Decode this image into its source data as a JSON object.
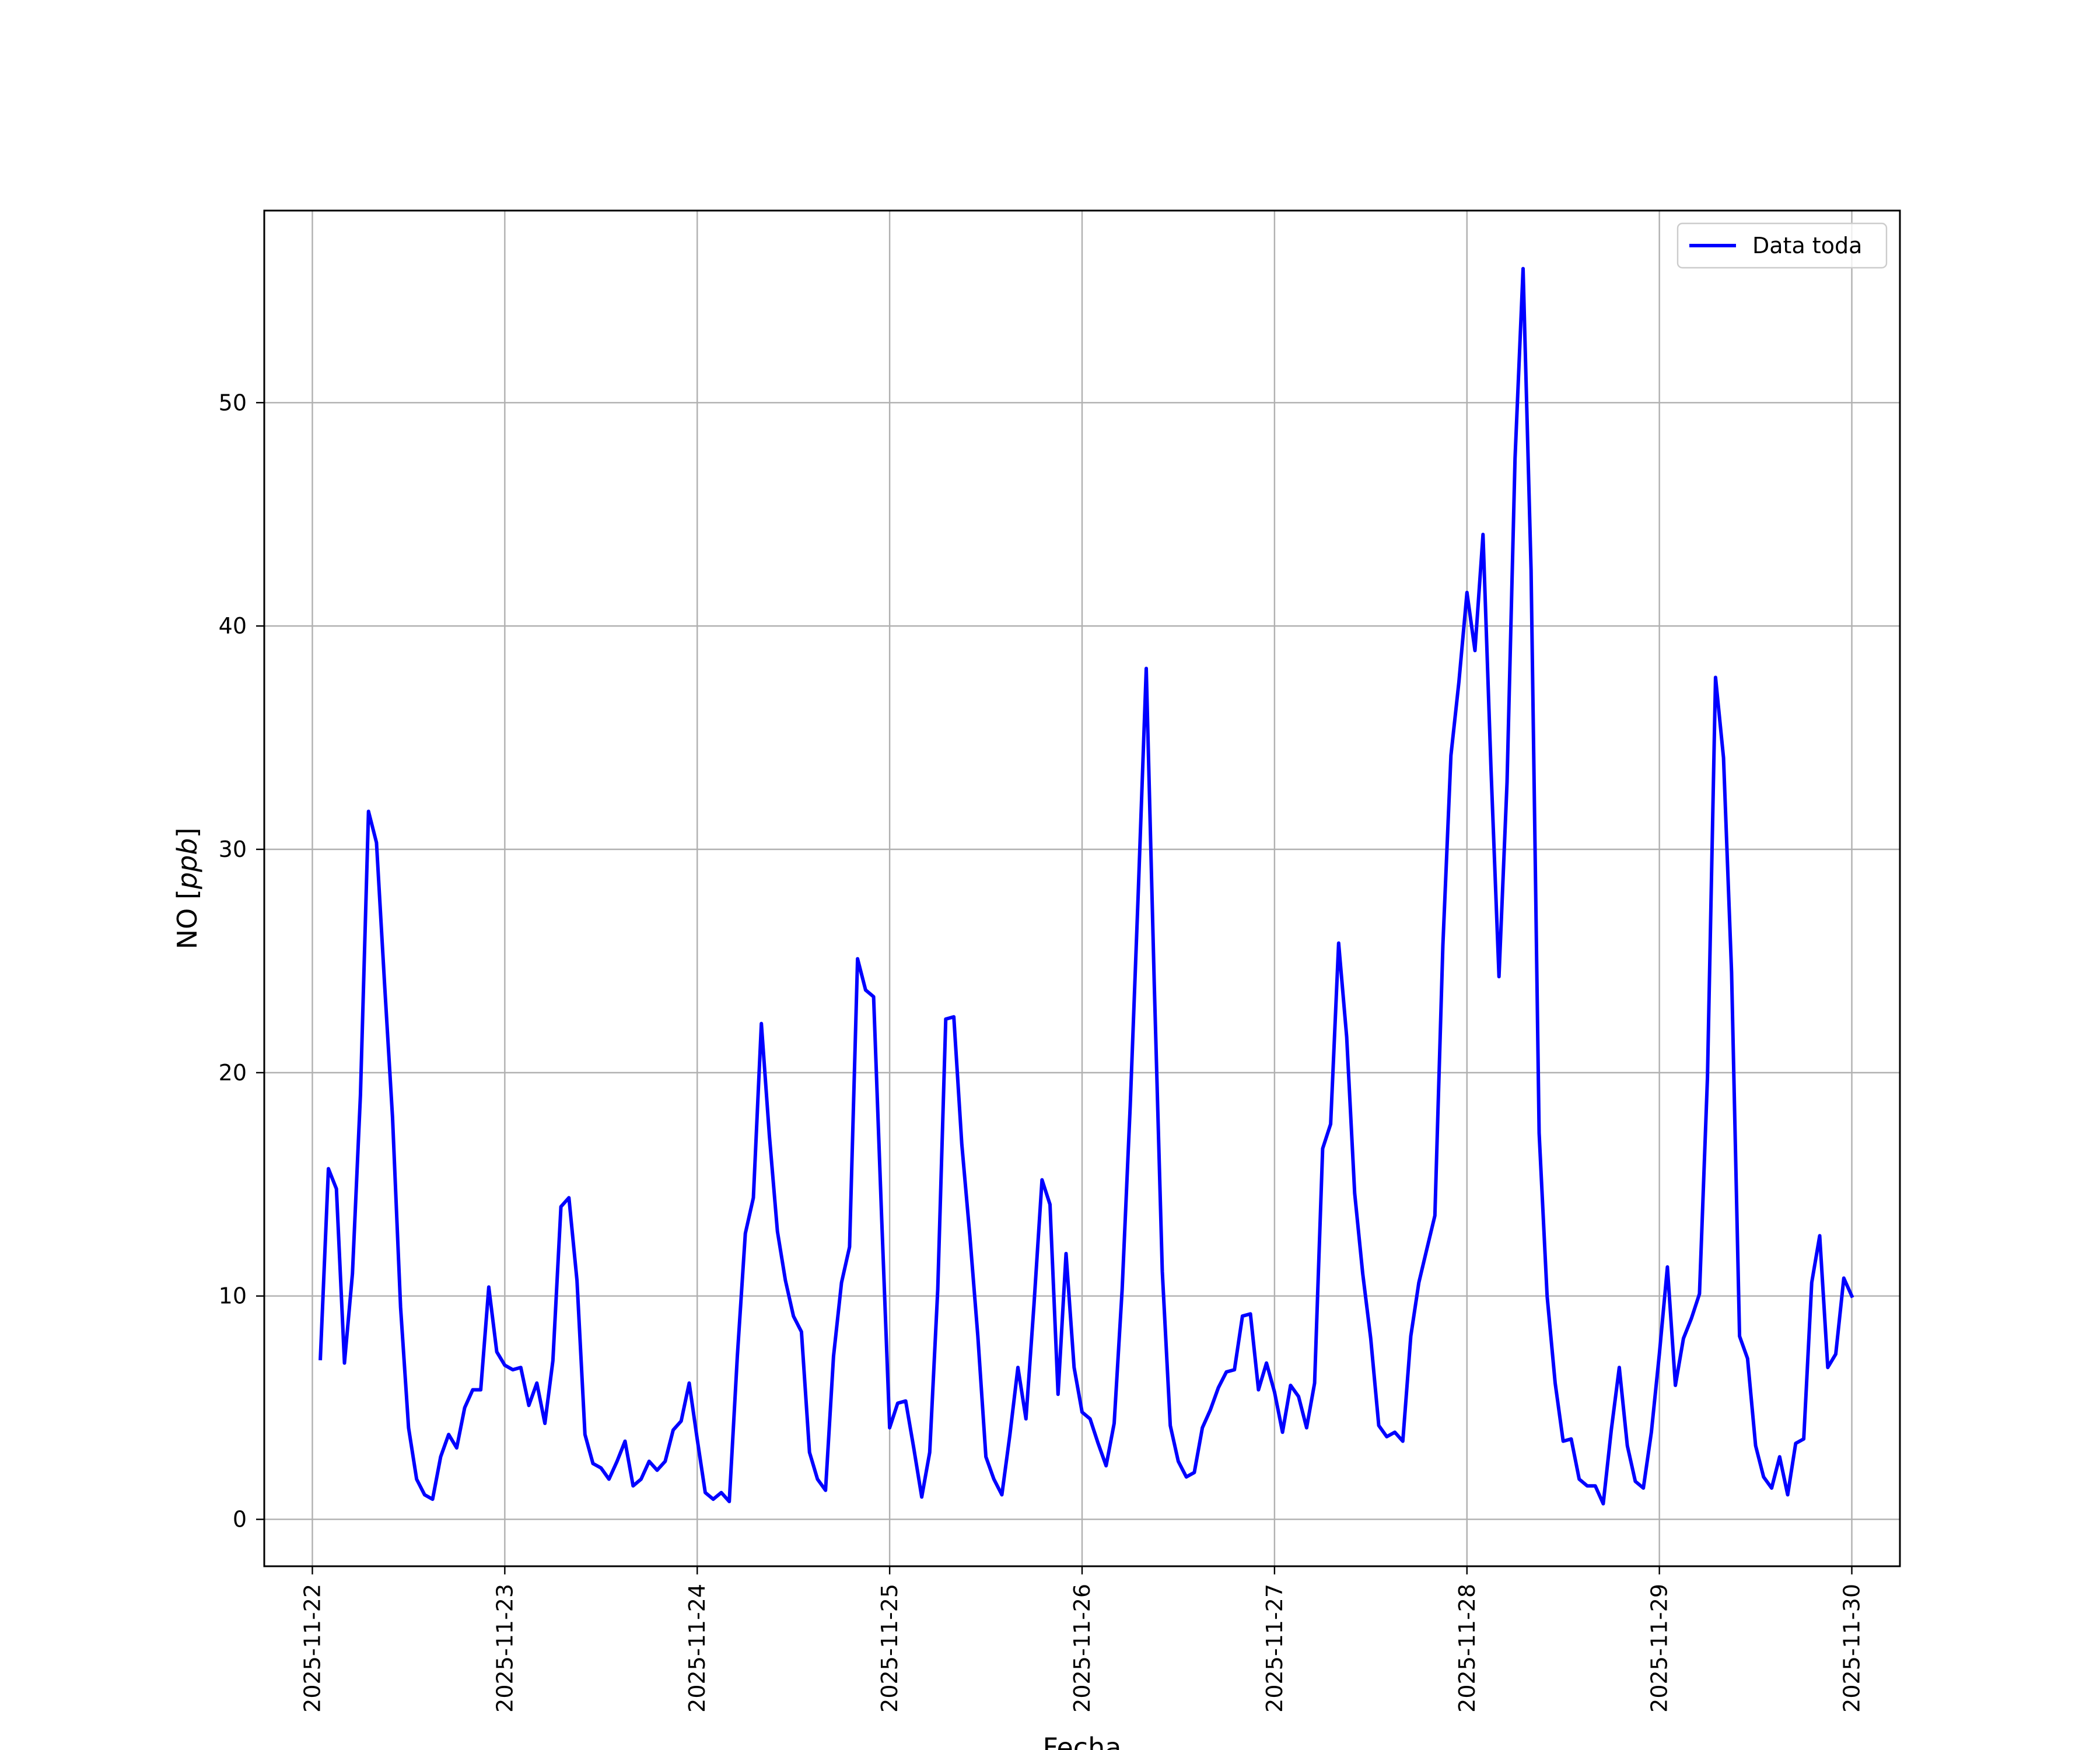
{
  "chart_data": {
    "type": "line",
    "title": "",
    "xlabel": "Fecha",
    "ylabel_prefix": "NO [",
    "ylabel_unit": "ppb",
    "ylabel_suffix": "]",
    "x_start": "2025-11-22T01:00",
    "x_step_hours": 1,
    "xlim": [
      "2025-11-21T18:00",
      "2025-11-30T06:00"
    ],
    "ylim": [
      -2.1,
      58.6
    ],
    "x_ticks": [
      "2025-11-22",
      "2025-11-23",
      "2025-11-24",
      "2025-11-25",
      "2025-11-26",
      "2025-11-27",
      "2025-11-28",
      "2025-11-29",
      "2025-11-30"
    ],
    "y_ticks": [
      0,
      10,
      20,
      30,
      40,
      50
    ],
    "grid": true,
    "legend": "top-right",
    "series": [
      {
        "name": "Data toda",
        "color": "#0000ff",
        "values": [
          7.2,
          15.7,
          14.8,
          7.0,
          11.0,
          19.0,
          31.7,
          30.3,
          24.0,
          18.0,
          9.5,
          4.1,
          1.8,
          1.1,
          0.9,
          2.8,
          3.8,
          3.2,
          5.0,
          5.8,
          5.8,
          10.4,
          7.5,
          6.9,
          6.7,
          6.8,
          5.1,
          6.1,
          4.3,
          7.1,
          14.0,
          14.4,
          10.7,
          3.8,
          2.5,
          2.3,
          1.8,
          2.6,
          3.5,
          1.5,
          1.8,
          2.6,
          2.2,
          2.6,
          4.0,
          4.4,
          6.1,
          3.6,
          1.2,
          0.9,
          1.2,
          0.8,
          7.3,
          12.8,
          14.4,
          22.2,
          17.2,
          12.9,
          10.7,
          9.1,
          8.4,
          3.0,
          1.8,
          1.3,
          7.3,
          10.6,
          12.2,
          25.1,
          23.7,
          23.4,
          13.5,
          4.1,
          5.2,
          5.3,
          3.2,
          1.0,
          3.0,
          10.3,
          22.4,
          22.5,
          16.8,
          12.7,
          8.2,
          2.8,
          1.8,
          1.1,
          3.8,
          6.8,
          4.5,
          9.6,
          15.2,
          14.1,
          5.6,
          11.9,
          6.8,
          4.8,
          4.5,
          3.4,
          2.4,
          4.3,
          10.3,
          18.5,
          28.0,
          38.1,
          24.0,
          11.1,
          4.2,
          2.6,
          1.9,
          2.1,
          4.1,
          4.9,
          5.9,
          6.6,
          6.7,
          9.1,
          9.2,
          5.8,
          7.0,
          5.7,
          3.9,
          6.0,
          5.5,
          4.1,
          6.1,
          16.6,
          17.7,
          25.8,
          21.6,
          14.6,
          11.0,
          8.1,
          4.2,
          3.7,
          3.9,
          3.5,
          8.2,
          10.6,
          12.1,
          13.6,
          25.7,
          34.2,
          37.5,
          41.5,
          38.9,
          44.1,
          33.6,
          24.3,
          33.0,
          47.5,
          56.0,
          42.5,
          17.3,
          10.0,
          6.1,
          3.5,
          3.6,
          1.8,
          1.5,
          1.5,
          0.7,
          4.0,
          6.8,
          3.3,
          1.7,
          1.4,
          3.9,
          7.4,
          11.3,
          6.0,
          8.1,
          9.0,
          10.1,
          19.8,
          37.7,
          34.1,
          24.5,
          8.2,
          7.2,
          3.3,
          1.9,
          1.4,
          2.8,
          1.1,
          3.4,
          3.6,
          10.6,
          12.7,
          6.8,
          7.4,
          10.8,
          10.0
        ]
      }
    ]
  }
}
